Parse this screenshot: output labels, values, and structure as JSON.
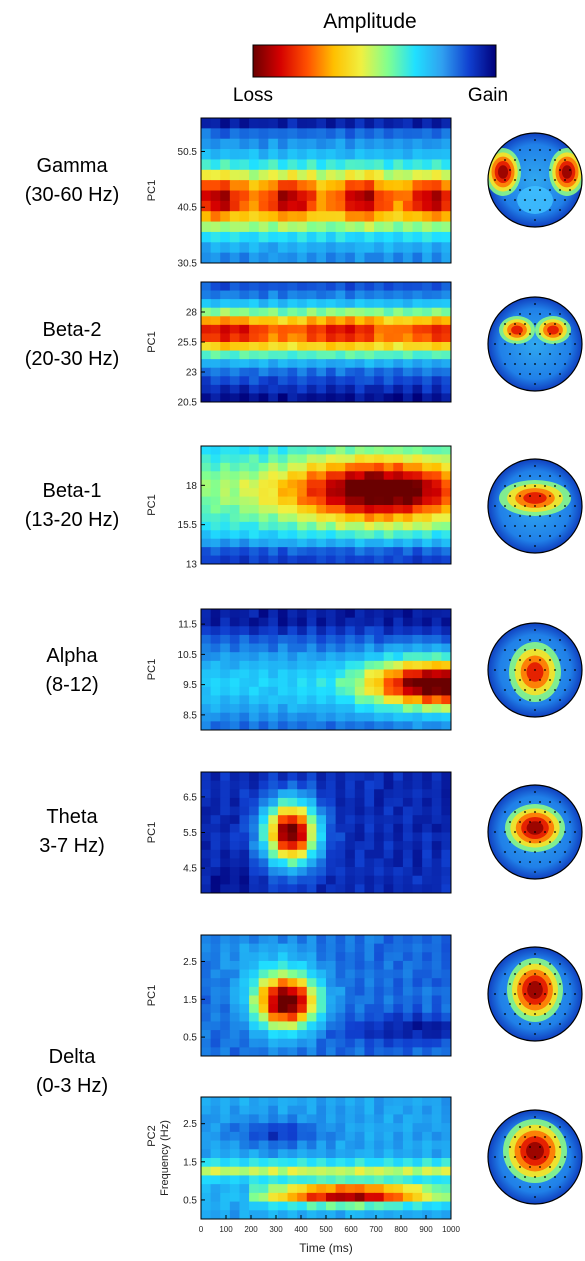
{
  "colorbar": {
    "title": "Amplitude",
    "left_label": "Loss",
    "right_label": "Gain",
    "stops": [
      "#6a0000",
      "#d40000",
      "#ff5000",
      "#ffc000",
      "#f0f040",
      "#80ff90",
      "#20e0ff",
      "#30a0f0",
      "#1040d0",
      "#00007a"
    ]
  },
  "band_labels": [
    {
      "line1": "Gamma",
      "line2": "(30-60 Hz)"
    },
    {
      "line1": "Beta-2",
      "line2": "(20-30 Hz)"
    },
    {
      "line1": "Beta-1",
      "line2": "(13-20 Hz)"
    },
    {
      "line1": "Alpha",
      "line2": "(8-12)"
    },
    {
      "line1": "Theta",
      "line2": "3-7 Hz)"
    },
    {
      "line1": "Delta",
      "line2": "(0-3 Hz)"
    }
  ],
  "chart_data": [
    {
      "type": "heatmap",
      "name": "gamma",
      "ylabel": "PC1",
      "yticks": [
        "50.5",
        "40.5",
        "30.5"
      ],
      "ylim": [
        30.5,
        56.5
      ],
      "xlim": [
        0,
        1000
      ]
    },
    {
      "type": "heatmap",
      "name": "beta2",
      "ylabel": "PC1",
      "yticks": [
        "28",
        "25.5",
        "23",
        "20.5"
      ],
      "ylim": [
        20.5,
        30.5
      ],
      "xlim": [
        0,
        1000
      ]
    },
    {
      "type": "heatmap",
      "name": "beta1",
      "ylabel": "PC1",
      "yticks": [
        "18",
        "15.5",
        "13"
      ],
      "ylim": [
        13,
        20.5
      ],
      "xlim": [
        0,
        1000
      ]
    },
    {
      "type": "heatmap",
      "name": "alpha",
      "ylabel": "PC1",
      "yticks": [
        "11.5",
        "10.5",
        "9.5",
        "8.5"
      ],
      "ylim": [
        8,
        12
      ],
      "xlim": [
        0,
        1000
      ]
    },
    {
      "type": "heatmap",
      "name": "theta",
      "ylabel": "PC1",
      "yticks": [
        "6.5",
        "5.5",
        "4.5"
      ],
      "ylim": [
        3.8,
        7.2
      ],
      "xlim": [
        0,
        1000
      ]
    },
    {
      "type": "heatmap",
      "name": "delta1",
      "ylabel": "PC1",
      "yticks": [
        "2.5",
        "1.5",
        "0.5"
      ],
      "ylim": [
        0,
        3.2
      ],
      "xlim": [
        0,
        1000
      ]
    },
    {
      "type": "heatmap",
      "name": "delta2",
      "ylabel": "PC2",
      "ylabel2": "Frequency (Hz)",
      "yticks": [
        "2.5",
        "1.5",
        "0.5"
      ],
      "ylim": [
        0,
        3.2
      ],
      "xlim": [
        0,
        1000
      ],
      "xticks": [
        "0",
        "100",
        "200",
        "300",
        "400",
        "500",
        "600",
        "700",
        "800",
        "900",
        "1000"
      ],
      "xlabel": "Time (ms)"
    }
  ]
}
